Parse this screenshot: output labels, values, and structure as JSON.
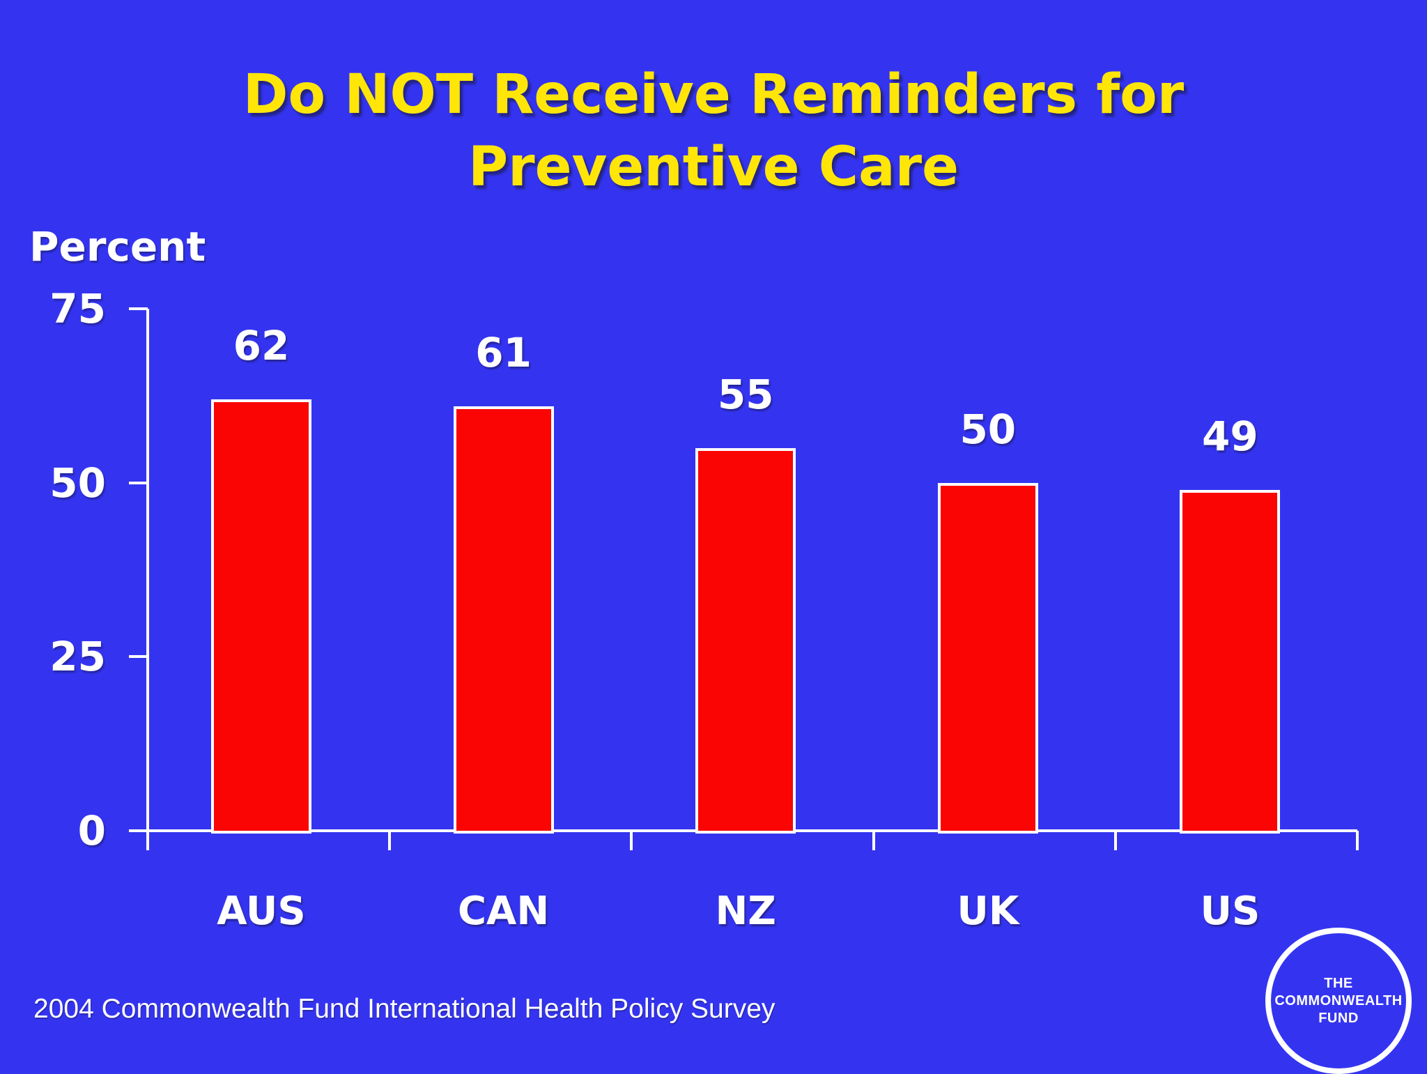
{
  "slide": {
    "title_lines": [
      "Do NOT Receive Reminders for",
      "Preventive Care"
    ],
    "axis_unit_label": "Percent",
    "source": "2004 Commonwealth Fund International Health Policy Survey",
    "logo_lines": [
      "THE",
      "COMMONWEALTH",
      "FUND"
    ]
  },
  "colors": {
    "background": "#3434f0",
    "title_text": "#ffe608",
    "bar_fill": "#fa0404",
    "bar_border": "#ffffff",
    "axis_and_text": "#ffffff"
  },
  "chart_data": {
    "type": "bar",
    "title": "Do NOT Receive Reminders for Preventive Care",
    "categories": [
      "AUS",
      "CAN",
      "NZ",
      "UK",
      "US"
    ],
    "values": [
      62,
      61,
      55,
      50,
      49
    ],
    "xlabel": "",
    "ylabel": "Percent",
    "ylim": [
      0,
      75
    ],
    "yticks": [
      0,
      25,
      50,
      75
    ],
    "grid": false,
    "legend": "none",
    "value_labels_shown": true,
    "source_note": "2004 Commonwealth Fund International Health Policy Survey"
  }
}
